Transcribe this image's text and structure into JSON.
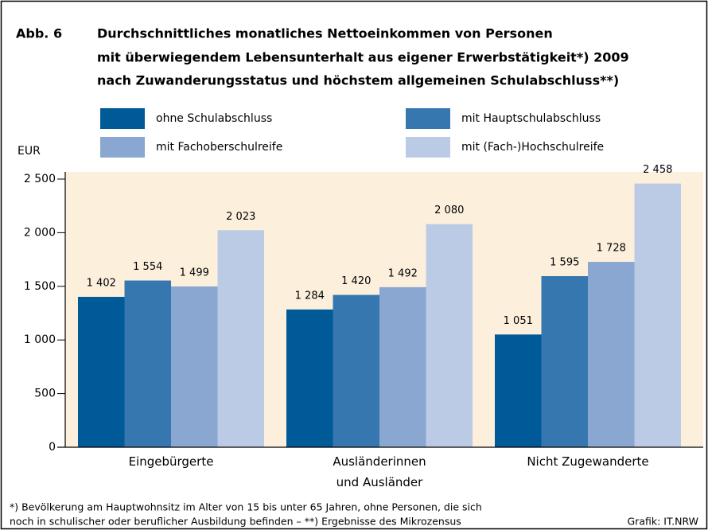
{
  "chart_data": {
    "type": "bar",
    "figure_label": "Abb. 6",
    "title_lines": [
      "Durchschnittliches monatliches Nettoeinkommen von Personen",
      "mit überwiegendem Lebensunterhalt aus eigener Erwerbstätigkeit*) 2009",
      "nach Zuwanderungsstatus und höchstem allgemeinen Schulabschluss**)"
    ],
    "y_label": "EUR",
    "categories": [
      "Eingebürgerte",
      "Ausländerinnen\nund Ausländer",
      "Nicht Zugewanderte"
    ],
    "series": [
      {
        "name": "ohne Schulabschluss",
        "color": "#005a97",
        "values": [
          1402,
          1284,
          1051
        ],
        "value_labels": [
          "1 402",
          "1 284",
          "1 051"
        ]
      },
      {
        "name": "mit Hauptschulabschluss",
        "color": "#3777b0",
        "values": [
          1554,
          1420,
          1595
        ],
        "value_labels": [
          "1 554",
          "1 420",
          "1 595"
        ]
      },
      {
        "name": "mit Fachoberschulreife",
        "color": "#89a7d0",
        "values": [
          1499,
          1492,
          1728
        ],
        "value_labels": [
          "1 499",
          "1 492",
          "1 728"
        ]
      },
      {
        "name": "mit (Fach-)Hochschulreife",
        "color": "#bccbe5",
        "values": [
          2023,
          2080,
          2458
        ],
        "value_labels": [
          "2 023",
          "2 080",
          "2 458"
        ]
      }
    ],
    "ylim": [
      0,
      2500
    ],
    "yticks": [
      0,
      500,
      {
        "value": 1000,
        "label": "1 000"
      },
      {
        "value": 1500,
        "label": "1 500"
      },
      {
        "value": 2000,
        "label": "2 000"
      },
      {
        "value": 2500,
        "label": "2 500"
      }
    ],
    "plot_background": "#fcefdc",
    "footnote_lines": [
      "*) Bevölkerung am Hauptwohnsitz im Alter von 15 bis unter 65 Jahren, ohne Personen, die sich",
      "noch in schulischer oder beruflicher Ausbildung befinden – **) Ergebnisse des Mikrozensus"
    ],
    "source": "Grafik: IT.NRW"
  }
}
